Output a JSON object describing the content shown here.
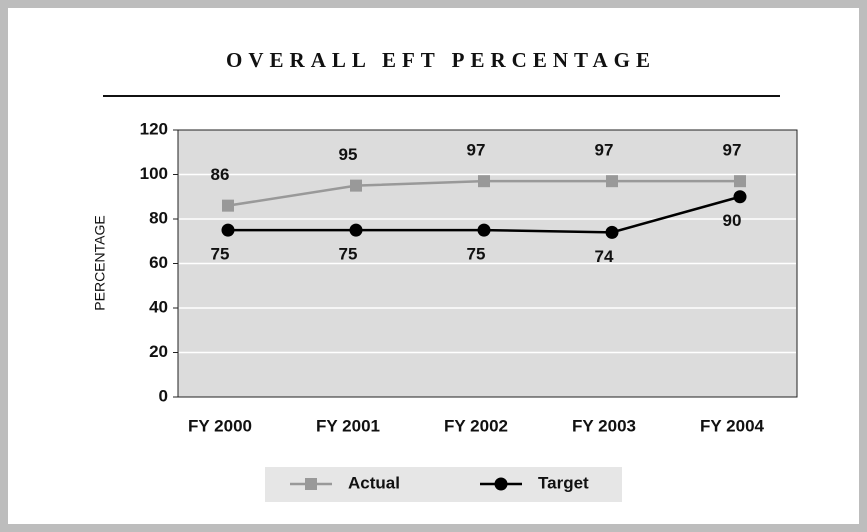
{
  "chart_data": {
    "type": "line",
    "title": "OVERALL EFT PERCENTAGE",
    "y_label": "PERCENTAGE",
    "categories": [
      "FY 2000",
      "FY 2001",
      "FY 2002",
      "FY 2003",
      "FY 2004"
    ],
    "series": [
      {
        "name": "Actual",
        "color": "#999999",
        "marker": "square",
        "values": [
          86,
          95,
          97,
          97,
          97
        ]
      },
      {
        "name": "Target",
        "color": "#000000",
        "marker": "circle",
        "values": [
          75,
          75,
          75,
          74,
          90
        ]
      }
    ],
    "ylim": [
      0,
      120
    ],
    "yticks": [
      0,
      20,
      40,
      60,
      80,
      100,
      120
    ],
    "grid": true
  }
}
